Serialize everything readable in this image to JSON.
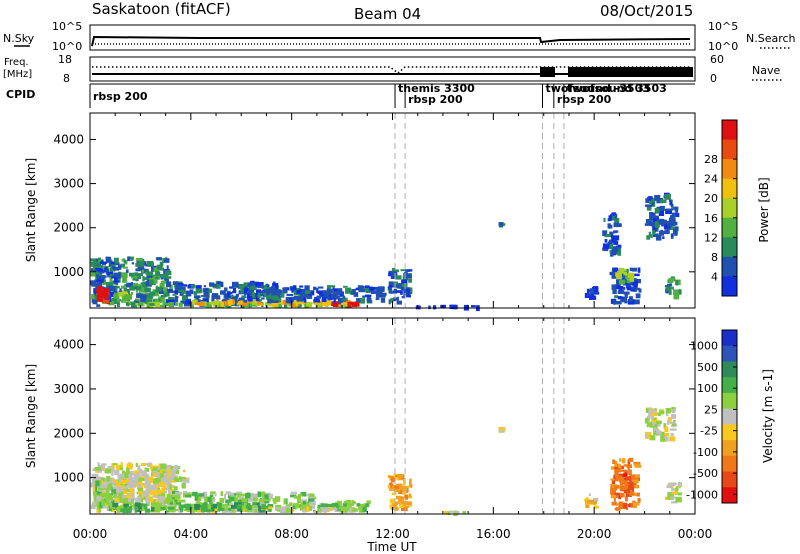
{
  "header": {
    "station": "Saskatoon (fitACF)",
    "beam": "Beam 04",
    "date": "08/Oct/2015"
  },
  "aux_panels": {
    "nsky_label": "N.Sky",
    "nsky_ticks": [
      "10^5",
      "10^0"
    ],
    "nsearch_label": "N.Search",
    "nsearch_ticks": [
      "10^5",
      "10^0"
    ],
    "freq_label_1": "Freq.",
    "freq_label_2": "[MHz]",
    "freq_ticks": [
      "18",
      "8"
    ],
    "nave_label": "Nave",
    "nave_ticks": [
      "60",
      "0"
    ],
    "cpid_label": "CPID",
    "cpid_entries": [
      {
        "label": "rbsp 200",
        "time_h": 0.0
      },
      {
        "label": "themis 3300",
        "time_h": 12.1
      },
      {
        "label": "rbsp 200",
        "time_h": 12.5
      },
      {
        "label": "twofsound -3503",
        "time_h": 17.95
      },
      {
        "label": "rbsp 200",
        "time_h": 18.4
      },
      {
        "label": "twofsound 3503",
        "time_h": 18.8
      }
    ]
  },
  "chart_data": [
    {
      "type": "heatmap",
      "title": "",
      "xlabel": "Time UT",
      "ylabel": "Slant Range [km]",
      "x_ticks": [
        "00:00",
        "04:00",
        "08:00",
        "12:00",
        "16:00",
        "20:00",
        "00:00"
      ],
      "xlim": [
        0,
        24
      ],
      "y_ticks": [
        "1000",
        "2000",
        "3000",
        "4000"
      ],
      "ylim": [
        180,
        4600
      ],
      "colorbar": {
        "label": "Power [dB]",
        "ticks": [
          "4",
          "8",
          "12",
          "16",
          "20",
          "24",
          "28"
        ],
        "colors": [
          "#1030e0",
          "#2050b0",
          "#2a8a5a",
          "#50b040",
          "#a8d028",
          "#f0c010",
          "#f08a10",
          "#e84a10",
          "#e01010"
        ]
      },
      "regions": [
        {
          "t0": 0.0,
          "t1": 3.3,
          "r0": 200,
          "r1": 1350,
          "level": 2
        },
        {
          "t0": 0.1,
          "t1": 1.3,
          "r0": 300,
          "r1": 1250,
          "level": 1
        },
        {
          "t0": 0.2,
          "t1": 0.8,
          "r0": 200,
          "r1": 700,
          "level": 8
        },
        {
          "t0": 0.8,
          "t1": 1.6,
          "r0": 300,
          "r1": 600,
          "level": 4
        },
        {
          "t0": 3.0,
          "t1": 7.5,
          "r0": 200,
          "r1": 800,
          "level": 1
        },
        {
          "t0": 1.5,
          "t1": 10.8,
          "r0": 200,
          "r1": 320,
          "level": 3
        },
        {
          "t0": 4.0,
          "t1": 10.5,
          "r0": 200,
          "r1": 380,
          "level": 5
        },
        {
          "t0": 9.5,
          "t1": 10.8,
          "r0": 200,
          "r1": 340,
          "level": 8
        },
        {
          "t0": 6.0,
          "t1": 11.8,
          "r0": 280,
          "r1": 700,
          "level": 1
        },
        {
          "t0": 11.8,
          "t1": 12.8,
          "r0": 200,
          "r1": 1100,
          "level": 1
        },
        {
          "t0": 12.8,
          "t1": 15.5,
          "r0": 200,
          "r1": 260,
          "level": 0
        },
        {
          "t0": 16.2,
          "t1": 16.3,
          "r0": 2000,
          "r1": 2150,
          "level": 1
        },
        {
          "t0": 20.3,
          "t1": 21.1,
          "r0": 1300,
          "r1": 2350,
          "level": 1
        },
        {
          "t0": 20.6,
          "t1": 21.9,
          "r0": 250,
          "r1": 1100,
          "level": 1
        },
        {
          "t0": 20.8,
          "t1": 21.6,
          "r0": 700,
          "r1": 1100,
          "level": 4
        },
        {
          "t0": 22.0,
          "t1": 23.4,
          "r0": 1700,
          "r1": 2800,
          "level": 1
        },
        {
          "t0": 22.8,
          "t1": 23.5,
          "r0": 350,
          "r1": 900,
          "level": 2
        },
        {
          "t0": 19.6,
          "t1": 20.2,
          "r0": 350,
          "r1": 700,
          "level": 0
        }
      ]
    },
    {
      "type": "heatmap",
      "title": "",
      "xlabel": "Time UT",
      "ylabel": "Slant Range [km]",
      "x_ticks": [
        "00:00",
        "04:00",
        "08:00",
        "12:00",
        "16:00",
        "20:00",
        "00:00"
      ],
      "xlim": [
        0,
        24
      ],
      "y_ticks": [
        "1000",
        "2000",
        "3000",
        "4000"
      ],
      "ylim": [
        180,
        4600
      ],
      "colorbar": {
        "label": "Velocity [m s-1]",
        "ticks": [
          "1000",
          "500",
          "100",
          "25",
          "-25",
          "-100",
          "-500",
          "-1000"
        ],
        "colors": [
          "#1a2ec8",
          "#2b56b8",
          "#2f8a5a",
          "#44b04a",
          "#8cd040",
          "#c0c0c0",
          "#f8c820",
          "#f0a020",
          "#f07818",
          "#e84818",
          "#e01010"
        ]
      },
      "regions": [
        {
          "t0": 0.0,
          "t1": 3.6,
          "r0": 200,
          "r1": 1350,
          "level": 5
        },
        {
          "t0": 0.1,
          "t1": 1.5,
          "r0": 250,
          "r1": 950,
          "level": 4
        },
        {
          "t0": 1.0,
          "t1": 3.2,
          "r0": 400,
          "r1": 1100,
          "level": 5
        },
        {
          "t0": 2.5,
          "t1": 4.0,
          "r0": 700,
          "r1": 1200,
          "level": 5
        },
        {
          "t0": 3.0,
          "t1": 9.0,
          "r0": 200,
          "r1": 700,
          "level": 4
        },
        {
          "t0": 4.0,
          "t1": 10.8,
          "r0": 200,
          "r1": 380,
          "level": 5
        },
        {
          "t0": 0.5,
          "t1": 7.0,
          "r0": 200,
          "r1": 450,
          "level": 3
        },
        {
          "t0": 9.0,
          "t1": 11.2,
          "r0": 200,
          "r1": 500,
          "level": 4
        },
        {
          "t0": 11.8,
          "t1": 12.8,
          "r0": 200,
          "r1": 1100,
          "level": 7
        },
        {
          "t0": 13.0,
          "t1": 15.0,
          "r0": 200,
          "r1": 260,
          "level": 5
        },
        {
          "t0": 16.2,
          "t1": 16.3,
          "r0": 2000,
          "r1": 2150,
          "level": 5
        },
        {
          "t0": 20.6,
          "t1": 21.9,
          "r0": 250,
          "r1": 1450,
          "level": 8
        },
        {
          "t0": 21.0,
          "t1": 21.7,
          "r0": 600,
          "r1": 1100,
          "level": 9
        },
        {
          "t0": 22.0,
          "t1": 23.3,
          "r0": 1800,
          "r1": 2600,
          "level": 5
        },
        {
          "t0": 22.8,
          "t1": 23.5,
          "r0": 400,
          "r1": 900,
          "level": 5
        },
        {
          "t0": 19.6,
          "t1": 20.2,
          "r0": 300,
          "r1": 650,
          "level": 6
        }
      ]
    }
  ]
}
